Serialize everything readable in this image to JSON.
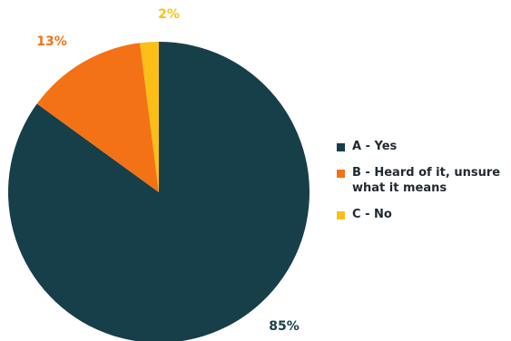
{
  "chart_data": {
    "type": "pie",
    "title": "",
    "slices": [
      {
        "label": "A - Yes",
        "value": 85,
        "display": "85%",
        "color": "#173f4a"
      },
      {
        "label": "B - Heard of it, unsure what it means",
        "value": 13,
        "display": "13%",
        "color": "#f47216"
      },
      {
        "label": "C - No",
        "value": 2,
        "display": "2%",
        "color": "#fcbf18"
      }
    ],
    "legend_position": "right"
  }
}
